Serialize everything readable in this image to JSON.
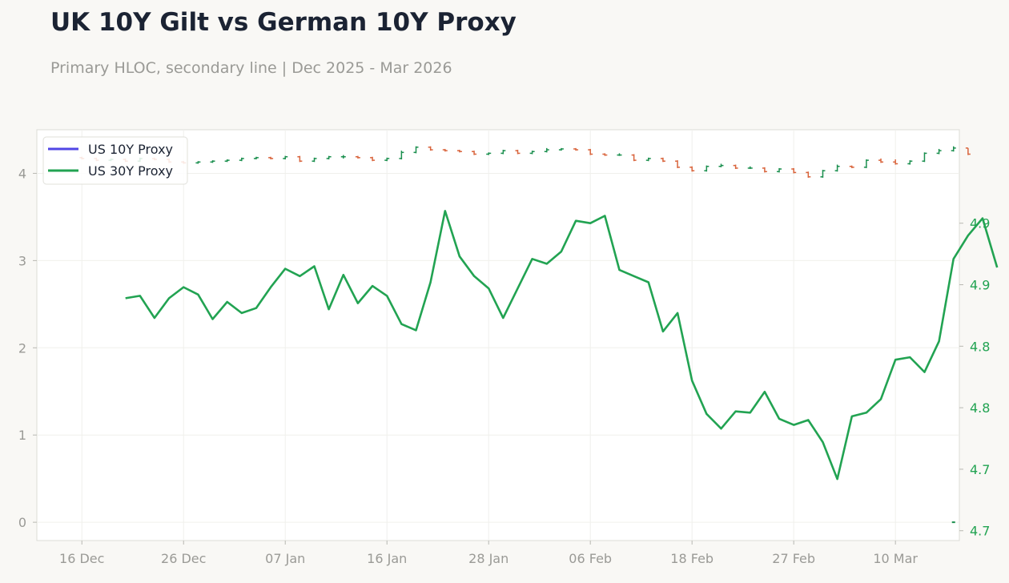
{
  "header": {
    "title": "UK 10Y Gilt vs German 10Y Proxy",
    "subtitle": "Primary HLOC, secondary line | Dec 2025 - Mar 2026"
  },
  "colors": {
    "up": "#1a8f4e",
    "down": "#d9643c",
    "series_10y": "#5046e5",
    "series_30y": "#22a352",
    "axis_text": "#9a9a96",
    "right_axis_text": "#22a352"
  },
  "chart_data": {
    "type": "line",
    "x_axis": {
      "tick_labels": [
        "16 Dec",
        "26 Dec",
        "07 Jan",
        "16 Jan",
        "28 Jan",
        "06 Feb",
        "18 Feb",
        "27 Feb",
        "10 Mar"
      ],
      "range_index": [
        -3.1,
        60.4
      ]
    },
    "y_left": {
      "ticks": [
        0,
        1,
        2,
        3,
        4
      ],
      "range": [
        -0.21,
        4.5
      ]
    },
    "y_right": {
      "tick_labels": [
        "4.7",
        "4.7",
        "4.8",
        "4.8",
        "4.9",
        "4.9"
      ],
      "range": [
        4.642,
        4.976
      ]
    },
    "legend": {
      "position": "top-left",
      "entries": [
        "US 10Y Proxy",
        "US 30Y Proxy"
      ]
    },
    "grid": true,
    "hloc": {
      "name": "US 10Y Proxy",
      "close": [
        4.17,
        4.15,
        4.16,
        4.14,
        4.17,
        4.16,
        4.13,
        4.12,
        4.13,
        4.14,
        4.15,
        4.17,
        4.18,
        4.17,
        4.19,
        4.14,
        4.17,
        4.19,
        4.19,
        4.18,
        4.15,
        4.17,
        4.24,
        4.3,
        4.27,
        4.26,
        4.25,
        4.22,
        4.23,
        4.26,
        4.23,
        4.25,
        4.27,
        4.28,
        4.27,
        4.22,
        4.21,
        4.21,
        4.15,
        4.17,
        4.14,
        4.07,
        4.03,
        4.08,
        4.09,
        4.06,
        4.06,
        4.02,
        4.05,
        4.01,
        3.96,
        4.03,
        4.08,
        4.07,
        4.15,
        4.13,
        4.11,
        4.14,
        4.23,
        4.26,
        4.29,
        4.22
      ],
      "open": [
        4.18,
        4.17,
        4.15,
        4.16,
        4.14,
        4.17,
        4.16,
        4.13,
        4.12,
        4.13,
        4.14,
        4.15,
        4.17,
        4.18,
        4.17,
        4.19,
        4.14,
        4.17,
        4.19,
        4.19,
        4.18,
        4.15,
        4.17,
        4.24,
        4.3,
        4.27,
        4.26,
        4.25,
        4.22,
        4.23,
        4.26,
        4.23,
        4.25,
        4.27,
        4.28,
        4.27,
        4.22,
        4.21,
        4.21,
        4.15,
        4.17,
        4.14,
        4.07,
        4.03,
        4.08,
        4.09,
        4.06,
        4.06,
        4.02,
        4.05,
        4.01,
        3.96,
        4.03,
        4.08,
        4.07,
        4.15,
        4.13,
        4.11,
        4.14,
        4.23,
        4.26,
        4.29
      ],
      "high": [
        4.19,
        4.18,
        4.17,
        4.17,
        4.18,
        4.18,
        4.17,
        4.14,
        4.14,
        4.15,
        4.16,
        4.18,
        4.19,
        4.19,
        4.2,
        4.2,
        4.18,
        4.2,
        4.21,
        4.2,
        4.19,
        4.18,
        4.26,
        4.31,
        4.31,
        4.28,
        4.27,
        4.26,
        4.24,
        4.27,
        4.27,
        4.26,
        4.29,
        4.29,
        4.29,
        4.28,
        4.23,
        4.23,
        4.22,
        4.18,
        4.18,
        4.15,
        4.08,
        4.09,
        4.11,
        4.1,
        4.08,
        4.07,
        4.06,
        4.06,
        4.02,
        4.04,
        4.1,
        4.09,
        4.16,
        4.17,
        4.16,
        4.15,
        4.24,
        4.28,
        4.31,
        4.29
      ],
      "low": [
        4.16,
        4.14,
        4.14,
        4.13,
        4.13,
        4.15,
        4.12,
        4.11,
        4.11,
        4.12,
        4.13,
        4.14,
        4.16,
        4.16,
        4.16,
        4.13,
        4.13,
        4.16,
        4.17,
        4.17,
        4.14,
        4.14,
        4.16,
        4.23,
        4.26,
        4.25,
        4.24,
        4.21,
        4.21,
        4.22,
        4.22,
        4.22,
        4.24,
        4.26,
        4.26,
        4.21,
        4.2,
        4.2,
        4.14,
        4.14,
        4.13,
        4.06,
        4.02,
        4.02,
        4.07,
        4.05,
        4.05,
        4.01,
        4.01,
        4.0,
        3.95,
        3.95,
        4.02,
        4.06,
        4.06,
        4.12,
        4.1,
        4.1,
        4.13,
        4.22,
        4.25,
        4.21
      ]
    },
    "line": {
      "name": "US 30Y Proxy",
      "start_index": 3,
      "values": [
        4.839,
        4.841,
        4.823,
        4.839,
        4.848,
        4.842,
        4.822,
        4.836,
        4.827,
        4.831,
        4.848,
        4.863,
        4.857,
        4.865,
        4.83,
        4.858,
        4.835,
        4.849,
        4.841,
        4.818,
        4.813,
        4.852,
        4.91,
        4.873,
        4.857,
        4.847,
        4.823,
        4.847,
        4.871,
        4.867,
        4.877,
        4.902,
        4.9,
        4.906,
        4.862,
        4.857,
        4.852,
        4.812,
        4.827,
        4.772,
        4.745,
        4.733,
        4.747,
        4.746,
        4.763,
        4.741,
        4.736,
        4.74,
        4.722,
        4.692,
        4.743,
        4.746,
        4.757,
        4.789,
        4.791,
        4.779,
        4.804,
        4.871,
        4.89,
        4.904,
        4.864
      ]
    }
  }
}
